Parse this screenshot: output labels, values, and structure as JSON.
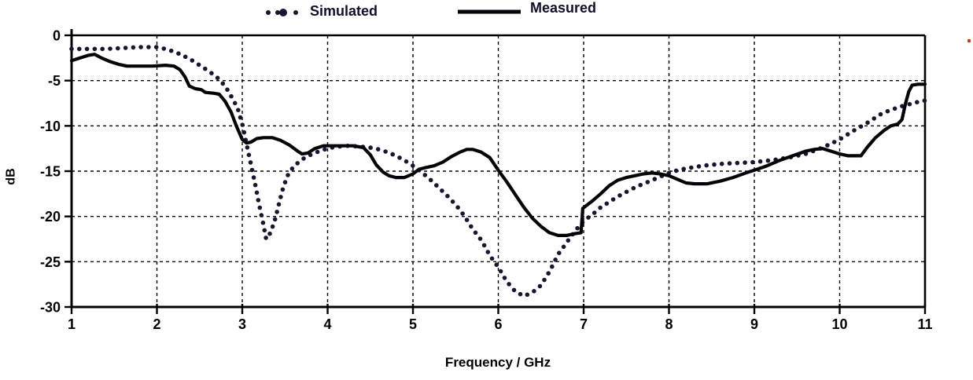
{
  "legend": {
    "simulated_label": "Simulated",
    "measured_label": "Measured"
  },
  "colors": {
    "background": "#ffffff",
    "simulated_series": "#16162e",
    "measured_series": "#040408",
    "axis": "#000000",
    "gridline": "#000000",
    "tick_label": "#000000",
    "legend_text": "#10102a",
    "artifact_dot": "#d43500"
  },
  "chart_data": {
    "type": "line",
    "title": "",
    "xlabel": "Frequency / GHz",
    "ylabel": "dB",
    "xlim": [
      1,
      11
    ],
    "ylim": [
      -30,
      0
    ],
    "x_ticks": [
      1,
      2,
      3,
      4,
      5,
      6,
      7,
      8,
      9,
      10,
      11
    ],
    "y_ticks": [
      0,
      -5,
      -10,
      -15,
      -20,
      -25,
      -30
    ],
    "grid": true,
    "grid_style": "dashed",
    "legend_position": "top",
    "series": [
      {
        "name": "Simulated",
        "style": "dotted",
        "color": "#16162e",
        "points": [
          [
            1.0,
            -1.5
          ],
          [
            1.2,
            -1.5
          ],
          [
            1.4,
            -1.5
          ],
          [
            1.6,
            -1.4
          ],
          [
            1.8,
            -1.3
          ],
          [
            2.0,
            -1.3
          ],
          [
            2.1,
            -1.5
          ],
          [
            2.2,
            -1.8
          ],
          [
            2.3,
            -2.2
          ],
          [
            2.4,
            -2.7
          ],
          [
            2.5,
            -3.3
          ],
          [
            2.6,
            -3.9
          ],
          [
            2.7,
            -4.6
          ],
          [
            2.8,
            -5.6
          ],
          [
            2.9,
            -7.2
          ],
          [
            2.95,
            -8.2
          ],
          [
            3.0,
            -9.8
          ],
          [
            3.05,
            -12.0
          ],
          [
            3.1,
            -14.2
          ],
          [
            3.15,
            -16.4
          ],
          [
            3.2,
            -18.8
          ],
          [
            3.25,
            -21.0
          ],
          [
            3.28,
            -22.5
          ],
          [
            3.33,
            -21.8
          ],
          [
            3.38,
            -20.5
          ],
          [
            3.43,
            -18.6
          ],
          [
            3.48,
            -16.8
          ],
          [
            3.53,
            -15.5
          ],
          [
            3.6,
            -14.5
          ],
          [
            3.7,
            -13.7
          ],
          [
            3.8,
            -13.2
          ],
          [
            3.9,
            -12.8
          ],
          [
            4.0,
            -12.5
          ],
          [
            4.1,
            -12.3
          ],
          [
            4.25,
            -12.2
          ],
          [
            4.4,
            -12.3
          ],
          [
            4.5,
            -12.4
          ],
          [
            4.6,
            -12.6
          ],
          [
            4.7,
            -12.9
          ],
          [
            4.8,
            -13.3
          ],
          [
            4.9,
            -13.8
          ],
          [
            5.0,
            -14.4
          ],
          [
            5.1,
            -15.1
          ],
          [
            5.2,
            -15.9
          ],
          [
            5.3,
            -16.8
          ],
          [
            5.4,
            -17.7
          ],
          [
            5.5,
            -18.7
          ],
          [
            5.6,
            -19.9
          ],
          [
            5.7,
            -21.4
          ],
          [
            5.8,
            -22.6
          ],
          [
            5.9,
            -24.3
          ],
          [
            6.0,
            -25.6
          ],
          [
            6.1,
            -27.2
          ],
          [
            6.2,
            -28.3
          ],
          [
            6.3,
            -28.8
          ],
          [
            6.4,
            -28.4
          ],
          [
            6.5,
            -27.6
          ],
          [
            6.6,
            -26.1
          ],
          [
            6.7,
            -24.2
          ],
          [
            6.8,
            -22.9
          ],
          [
            6.9,
            -21.6
          ],
          [
            7.0,
            -20.5
          ],
          [
            7.1,
            -19.8
          ],
          [
            7.2,
            -19.0
          ],
          [
            7.3,
            -18.4
          ],
          [
            7.4,
            -17.8
          ],
          [
            7.5,
            -17.3
          ],
          [
            7.6,
            -16.8
          ],
          [
            7.7,
            -16.4
          ],
          [
            7.8,
            -16.0
          ],
          [
            7.9,
            -15.6
          ],
          [
            8.0,
            -15.2
          ],
          [
            8.1,
            -14.9
          ],
          [
            8.2,
            -14.7
          ],
          [
            8.4,
            -14.4
          ],
          [
            8.6,
            -14.2
          ],
          [
            8.8,
            -14.1
          ],
          [
            9.0,
            -14.0
          ],
          [
            9.2,
            -13.8
          ],
          [
            9.4,
            -13.5
          ],
          [
            9.6,
            -13.1
          ],
          [
            9.8,
            -12.4
          ],
          [
            10.0,
            -11.5
          ],
          [
            10.15,
            -10.6
          ],
          [
            10.3,
            -9.8
          ],
          [
            10.5,
            -8.6
          ],
          [
            10.7,
            -7.9
          ],
          [
            10.9,
            -7.4
          ],
          [
            11.0,
            -7.2
          ]
        ]
      },
      {
        "name": "Measured",
        "style": "solid",
        "color": "#040408",
        "points": [
          [
            1.0,
            -2.8
          ],
          [
            1.1,
            -2.5
          ],
          [
            1.2,
            -2.2
          ],
          [
            1.27,
            -2.1
          ],
          [
            1.35,
            -2.5
          ],
          [
            1.45,
            -2.9
          ],
          [
            1.55,
            -3.2
          ],
          [
            1.65,
            -3.4
          ],
          [
            1.8,
            -3.4
          ],
          [
            1.95,
            -3.4
          ],
          [
            2.1,
            -3.3
          ],
          [
            2.2,
            -3.4
          ],
          [
            2.27,
            -3.8
          ],
          [
            2.33,
            -4.6
          ],
          [
            2.38,
            -5.6
          ],
          [
            2.45,
            -5.9
          ],
          [
            2.52,
            -6.0
          ],
          [
            2.57,
            -6.3
          ],
          [
            2.67,
            -6.4
          ],
          [
            2.73,
            -6.5
          ],
          [
            2.8,
            -7.3
          ],
          [
            2.87,
            -8.5
          ],
          [
            2.93,
            -10.0
          ],
          [
            3.0,
            -11.5
          ],
          [
            3.05,
            -11.9
          ],
          [
            3.1,
            -11.8
          ],
          [
            3.17,
            -11.4
          ],
          [
            3.25,
            -11.3
          ],
          [
            3.35,
            -11.3
          ],
          [
            3.45,
            -11.6
          ],
          [
            3.55,
            -12.1
          ],
          [
            3.65,
            -12.8
          ],
          [
            3.7,
            -13.1
          ],
          [
            3.77,
            -13.0
          ],
          [
            3.85,
            -12.5
          ],
          [
            3.95,
            -12.2
          ],
          [
            4.1,
            -12.2
          ],
          [
            4.3,
            -12.2
          ],
          [
            4.42,
            -12.4
          ],
          [
            4.5,
            -13.2
          ],
          [
            4.57,
            -14.3
          ],
          [
            4.65,
            -15.1
          ],
          [
            4.72,
            -15.5
          ],
          [
            4.8,
            -15.7
          ],
          [
            4.9,
            -15.7
          ],
          [
            5.0,
            -15.3
          ],
          [
            5.07,
            -14.8
          ],
          [
            5.15,
            -14.6
          ],
          [
            5.25,
            -14.4
          ],
          [
            5.35,
            -14.0
          ],
          [
            5.45,
            -13.4
          ],
          [
            5.55,
            -12.9
          ],
          [
            5.63,
            -12.6
          ],
          [
            5.7,
            -12.6
          ],
          [
            5.8,
            -12.9
          ],
          [
            5.9,
            -13.5
          ],
          [
            6.0,
            -14.9
          ],
          [
            6.1,
            -16.2
          ],
          [
            6.2,
            -17.6
          ],
          [
            6.3,
            -19.0
          ],
          [
            6.4,
            -20.2
          ],
          [
            6.5,
            -21.1
          ],
          [
            6.6,
            -21.8
          ],
          [
            6.7,
            -22.1
          ],
          [
            6.8,
            -22.1
          ],
          [
            6.9,
            -21.9
          ],
          [
            6.97,
            -21.8
          ],
          [
            6.99,
            -19.1
          ],
          [
            7.1,
            -18.3
          ],
          [
            7.2,
            -17.5
          ],
          [
            7.3,
            -16.6
          ],
          [
            7.4,
            -16.0
          ],
          [
            7.5,
            -15.7
          ],
          [
            7.6,
            -15.5
          ],
          [
            7.7,
            -15.3
          ],
          [
            7.8,
            -15.2
          ],
          [
            7.9,
            -15.3
          ],
          [
            8.0,
            -15.5
          ],
          [
            8.1,
            -15.9
          ],
          [
            8.2,
            -16.3
          ],
          [
            8.3,
            -16.4
          ],
          [
            8.45,
            -16.4
          ],
          [
            8.6,
            -16.1
          ],
          [
            8.75,
            -15.7
          ],
          [
            8.9,
            -15.2
          ],
          [
            9.0,
            -14.9
          ],
          [
            9.15,
            -14.4
          ],
          [
            9.3,
            -13.8
          ],
          [
            9.45,
            -13.3
          ],
          [
            9.6,
            -12.8
          ],
          [
            9.7,
            -12.6
          ],
          [
            9.8,
            -12.5
          ],
          [
            9.9,
            -12.8
          ],
          [
            10.0,
            -13.1
          ],
          [
            10.1,
            -13.3
          ],
          [
            10.25,
            -13.3
          ],
          [
            10.32,
            -12.4
          ],
          [
            10.42,
            -11.3
          ],
          [
            10.52,
            -10.5
          ],
          [
            10.6,
            -10.0
          ],
          [
            10.68,
            -9.8
          ],
          [
            10.73,
            -9.3
          ],
          [
            10.77,
            -7.6
          ],
          [
            10.81,
            -6.2
          ],
          [
            10.85,
            -5.5
          ],
          [
            10.92,
            -5.4
          ],
          [
            11.0,
            -5.4
          ]
        ]
      }
    ]
  }
}
